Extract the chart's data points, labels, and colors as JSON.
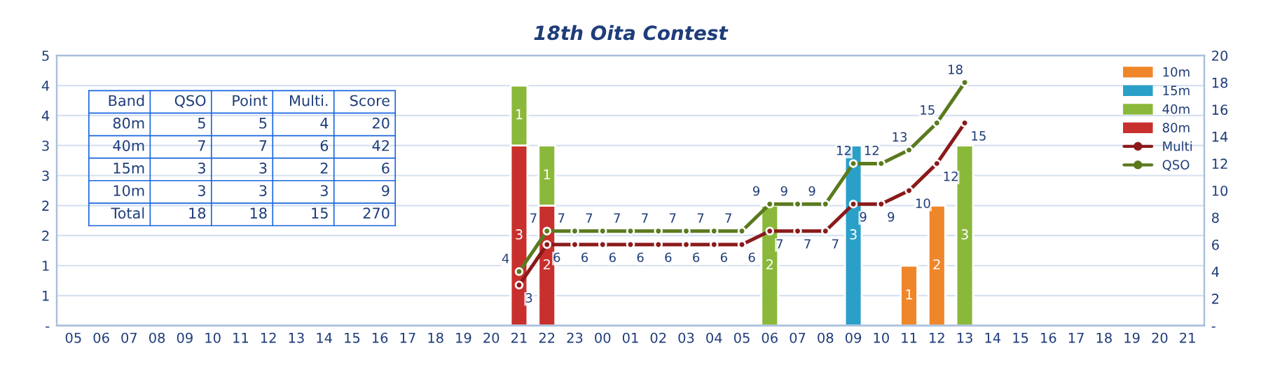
{
  "chart_data": {
    "type": "bar",
    "title": "18th Oita Contest",
    "categories": [
      "05",
      "06",
      "07",
      "08",
      "09",
      "10",
      "11",
      "12",
      "13",
      "14",
      "15",
      "16",
      "17",
      "18",
      "19",
      "20",
      "21",
      "22",
      "23",
      "00",
      "01",
      "02",
      "03",
      "04",
      "05",
      "06",
      "07",
      "08",
      "09",
      "10",
      "11",
      "12",
      "13",
      "14",
      "15",
      "16",
      "17",
      "18",
      "19",
      "20",
      "21"
    ],
    "stacked": true,
    "data_labels": true,
    "grid": "y",
    "legend": "top right",
    "marker": "circle",
    "series": [
      {
        "name": "80m",
        "color": "#c8302e",
        "values": [
          null,
          null,
          null,
          null,
          null,
          null,
          null,
          null,
          null,
          null,
          null,
          null,
          null,
          null,
          null,
          null,
          3,
          2,
          null,
          null,
          null,
          null,
          null,
          null,
          null,
          null,
          null,
          null,
          null,
          null,
          null,
          null,
          null,
          null,
          null,
          null,
          null,
          null,
          null,
          null,
          null
        ]
      },
      {
        "name": "40m",
        "color": "#8ab83a",
        "values": [
          null,
          null,
          null,
          null,
          null,
          null,
          null,
          null,
          null,
          null,
          null,
          null,
          null,
          null,
          null,
          null,
          1,
          1,
          null,
          null,
          null,
          null,
          null,
          null,
          null,
          2,
          null,
          null,
          null,
          null,
          null,
          null,
          3,
          null,
          null,
          null,
          null,
          null,
          null,
          null,
          null
        ]
      },
      {
        "name": "15m",
        "color": "#2aa0c8",
        "values": [
          null,
          null,
          null,
          null,
          null,
          null,
          null,
          null,
          null,
          null,
          null,
          null,
          null,
          null,
          null,
          null,
          null,
          null,
          null,
          null,
          null,
          null,
          null,
          null,
          null,
          null,
          null,
          null,
          3,
          null,
          null,
          null,
          null,
          null,
          null,
          null,
          null,
          null,
          null,
          null,
          null
        ]
      },
      {
        "name": "10m",
        "color": "#f0862a",
        "values": [
          null,
          null,
          null,
          null,
          null,
          null,
          null,
          null,
          null,
          null,
          null,
          null,
          null,
          null,
          null,
          null,
          null,
          null,
          null,
          null,
          null,
          null,
          null,
          null,
          null,
          null,
          null,
          null,
          null,
          null,
          1,
          2,
          null,
          null,
          null,
          null,
          null,
          null,
          null,
          null,
          null
        ]
      },
      {
        "name": "Multi",
        "type": "line",
        "axis": "y2",
        "color": "#8b1a1a",
        "values": [
          null,
          null,
          null,
          null,
          null,
          null,
          null,
          null,
          null,
          null,
          null,
          null,
          null,
          null,
          null,
          null,
          3,
          6,
          6,
          6,
          6,
          6,
          6,
          6,
          6,
          7,
          7,
          7,
          9,
          9,
          10,
          12,
          15,
          null,
          null,
          null,
          null,
          null,
          null,
          null,
          null
        ]
      },
      {
        "name": "QSO",
        "type": "line",
        "axis": "y2",
        "color": "#5a7a1e",
        "values": [
          null,
          null,
          null,
          null,
          null,
          null,
          null,
          null,
          null,
          null,
          null,
          null,
          null,
          null,
          null,
          null,
          4,
          7,
          7,
          7,
          7,
          7,
          7,
          7,
          7,
          9,
          9,
          9,
          12,
          12,
          13,
          15,
          18,
          null,
          null,
          null,
          null,
          null,
          null,
          null,
          null
        ]
      }
    ],
    "ylim": [
      0,
      4.5
    ],
    "yticks": [
      {
        "value": 0,
        "label": "-"
      },
      {
        "value": 0.5,
        "label": "1"
      },
      1,
      {
        "value": 1.5,
        "label": "2"
      },
      2,
      {
        "value": 2.5,
        "label": "3"
      },
      3,
      {
        "value": 3.5,
        "label": "4"
      },
      4,
      {
        "value": 4.5,
        "label": "5"
      }
    ],
    "y2lim": [
      0,
      20
    ],
    "y2ticks": [
      {
        "value": 0,
        "label": "-"
      },
      2,
      4,
      6,
      8,
      10,
      12,
      14,
      16,
      18,
      20
    ],
    "annotations": [
      "Band",
      "QSO",
      "Point",
      "Multi.",
      "Score",
      "80m",
      "5",
      "5",
      "4",
      "20",
      "40m",
      "7",
      "7",
      "6",
      "42",
      "15m",
      "3",
      "3",
      "2",
      "6",
      "10m",
      "3",
      "3",
      "3",
      "9",
      "Total",
      "18",
      "18",
      "15",
      "270"
    ]
  }
}
